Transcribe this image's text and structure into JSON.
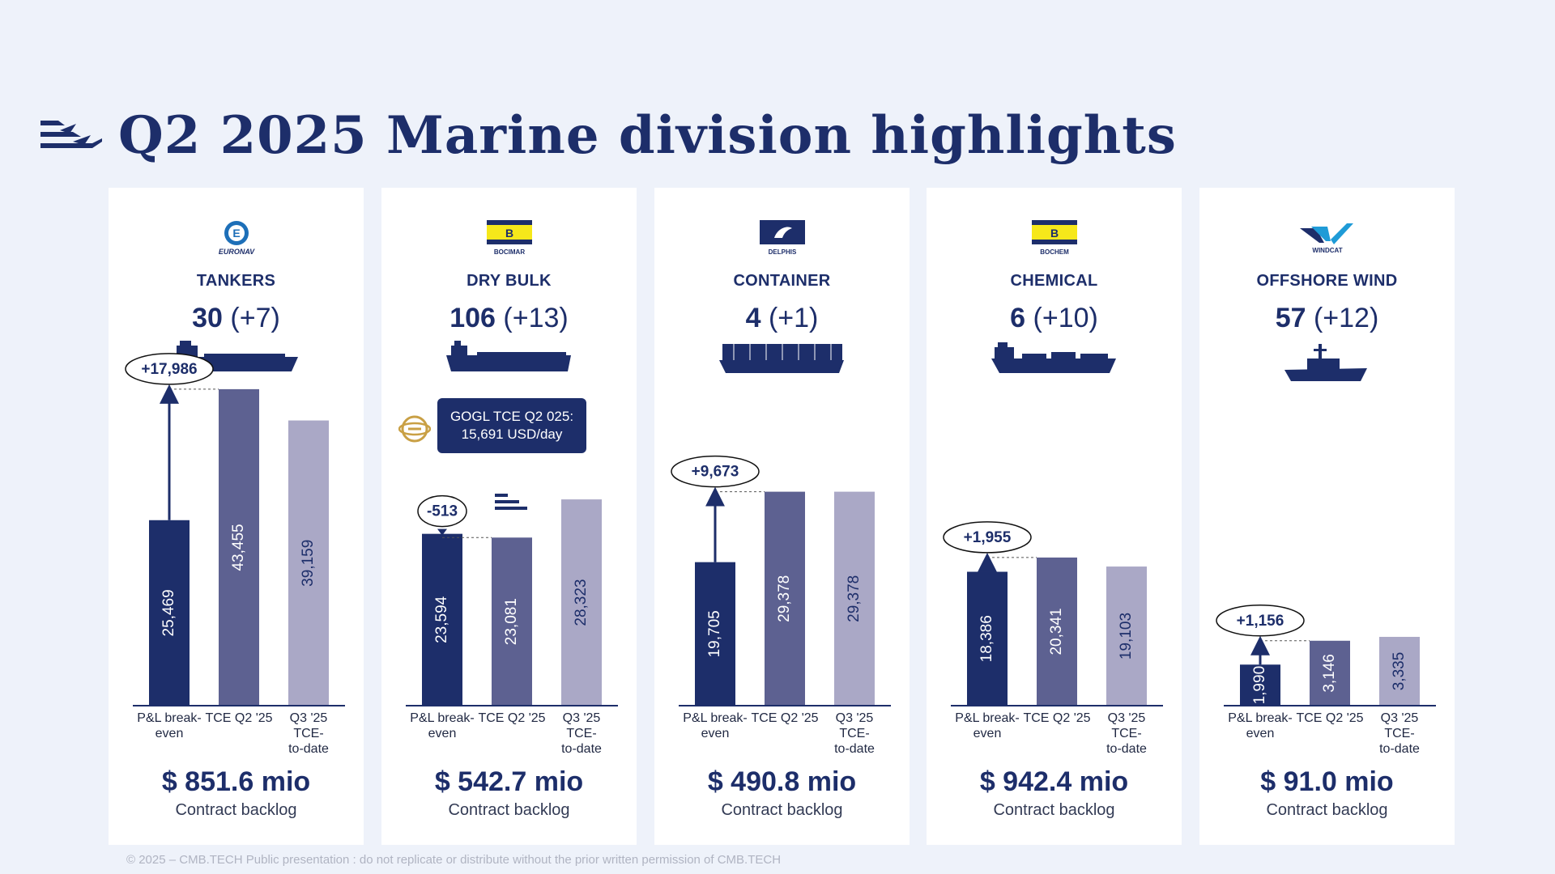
{
  "title": "Q2 2025 Marine division highlights",
  "footer": "© 2025 – CMB.TECH Public presentation : do not replicate or distribute without the prior written permission of CMB.TECH",
  "callout": {
    "line1": "GOGL TCE Q2 025:",
    "line2": "15,691 USD/day"
  },
  "colors": {
    "dark": "#1d2e6a",
    "mid": "#5d6191",
    "light": "#aaa8c6",
    "gold": "#c9a045"
  },
  "segments": [
    {
      "brand": "EURONAV",
      "name": "TANKERS",
      "fleet_count": "30",
      "fleet_change": "(+7)",
      "delta": "+17,986",
      "backlog": "$ 851.6 mio",
      "backlog_label": "Contract backlog",
      "ship_icon": "tanker-ship-icon"
    },
    {
      "brand": "BOCIMAR",
      "name": "DRY BULK",
      "fleet_count": "106",
      "fleet_change": "(+13)",
      "delta": "-513",
      "backlog": "$ 542.7 mio",
      "backlog_label": "Contract backlog",
      "ship_icon": "bulk-carrier-icon"
    },
    {
      "brand": "DELPHIS",
      "name": "CONTAINER",
      "fleet_count": "4",
      "fleet_change": "(+1)",
      "delta": "+9,673",
      "backlog": "$ 490.8 mio",
      "backlog_label": "Contract backlog",
      "ship_icon": "container-ship-icon"
    },
    {
      "brand": "BOCHEM",
      "name": "CHEMICAL",
      "fleet_count": "6",
      "fleet_change": "(+10)",
      "delta": "+1,955",
      "backlog": "$ 942.4 mio",
      "backlog_label": "Contract backlog",
      "ship_icon": "chemical-tanker-icon"
    },
    {
      "brand": "WINDCAT",
      "name": "OFFSHORE WIND",
      "fleet_count": "57",
      "fleet_change": "(+12)",
      "delta": "+1,156",
      "backlog": "$ 91.0 mio",
      "backlog_label": "Contract backlog",
      "ship_icon": "crew-transfer-vessel-icon"
    }
  ],
  "chart_data": [
    {
      "type": "bar",
      "title": "TANKERS",
      "categories": [
        "P&L break-even",
        "TCE Q2 '25",
        "Q3 '25 TCE-to-date"
      ],
      "category_lines": [
        [
          "P&L break-",
          "even"
        ],
        [
          "TCE Q2 '25"
        ],
        [
          "Q3 '25",
          "TCE-",
          "to-date"
        ]
      ],
      "values": [
        25469,
        43455,
        39159
      ],
      "value_labels": [
        "25,469",
        "43,455",
        "39,159"
      ],
      "annotation": "+17,986",
      "direction": "up"
    },
    {
      "type": "bar",
      "title": "DRY BULK",
      "categories": [
        "P&L break-even",
        "TCE Q2 '25",
        "Q3 '25 TCE-to-date"
      ],
      "category_lines": [
        [
          "P&L break-",
          "even"
        ],
        [
          "TCE Q2 '25"
        ],
        [
          "Q3 '25",
          "TCE-",
          "to-date"
        ]
      ],
      "values": [
        23594,
        23081,
        28323
      ],
      "value_labels": [
        "23,594",
        "23,081",
        "28,323"
      ],
      "annotation": "-513",
      "direction": "down"
    },
    {
      "type": "bar",
      "title": "CONTAINER",
      "categories": [
        "P&L break-even",
        "TCE Q2 '25",
        "Q3 '25 TCE-to-date"
      ],
      "category_lines": [
        [
          "P&L break-",
          "even"
        ],
        [
          "TCE Q2 '25"
        ],
        [
          "Q3 '25",
          "TCE-",
          "to-date"
        ]
      ],
      "values": [
        19705,
        29378,
        29378
      ],
      "value_labels": [
        "19,705",
        "29,378",
        "29,378"
      ],
      "annotation": "+9,673",
      "direction": "up"
    },
    {
      "type": "bar",
      "title": "CHEMICAL",
      "categories": [
        "P&L break-even",
        "TCE Q2 '25",
        "Q3 '25 TCE-to-date"
      ],
      "category_lines": [
        [
          "P&L break-",
          "even"
        ],
        [
          "TCE Q2 '25"
        ],
        [
          "Q3 '25",
          "TCE-",
          "to-date"
        ]
      ],
      "values": [
        18386,
        20341,
        19103
      ],
      "value_labels": [
        "18,386",
        "20,341",
        "19,103"
      ],
      "annotation": "+1,955",
      "direction": "up"
    },
    {
      "type": "bar",
      "title": "OFFSHORE WIND",
      "categories": [
        "P&L break-even",
        "TCE Q2 '25",
        "Q3 '25 TCE-to-date"
      ],
      "category_lines": [
        [
          "P&L break-",
          "even"
        ],
        [
          "TCE Q2 '25"
        ],
        [
          "Q3 '25",
          "TCE-",
          "to-date"
        ]
      ],
      "values": [
        1990,
        3146,
        3335
      ],
      "value_labels": [
        "1,990",
        "3,146",
        "3,335"
      ],
      "annotation": "+1,156",
      "direction": "up"
    }
  ]
}
